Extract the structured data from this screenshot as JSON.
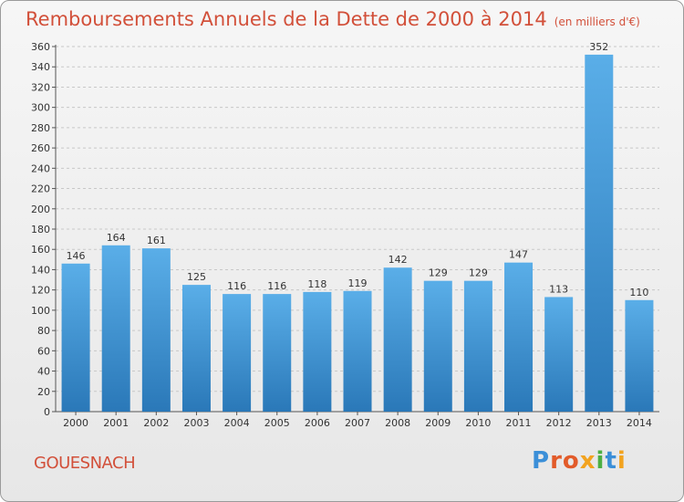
{
  "header": {
    "title": "Remboursements Annuels de la Dette de 2000 à 2014",
    "unit": "(en milliers d'€)"
  },
  "footer": {
    "commune": "GOUESNACH",
    "logo_text": "Proxiti"
  },
  "colors": {
    "title": "#d2503a",
    "bar_top": "#5aaee8",
    "bar_bottom": "#2a78b8"
  },
  "chart_data": {
    "type": "bar",
    "title": "Remboursements Annuels de la Dette de 2000 à 2014",
    "xlabel": "",
    "ylabel": "",
    "categories": [
      "2000",
      "2001",
      "2002",
      "2003",
      "2004",
      "2005",
      "2006",
      "2007",
      "2008",
      "2009",
      "2010",
      "2011",
      "2012",
      "2013",
      "2014"
    ],
    "values": [
      146,
      164,
      161,
      125,
      116,
      116,
      118,
      119,
      142,
      129,
      129,
      147,
      113,
      352,
      110
    ],
    "ylim": [
      0,
      360
    ],
    "yticks": [
      0,
      20,
      40,
      60,
      80,
      100,
      120,
      140,
      160,
      180,
      200,
      220,
      240,
      260,
      280,
      300,
      320,
      340,
      360
    ],
    "grid": true,
    "legend": "none"
  }
}
